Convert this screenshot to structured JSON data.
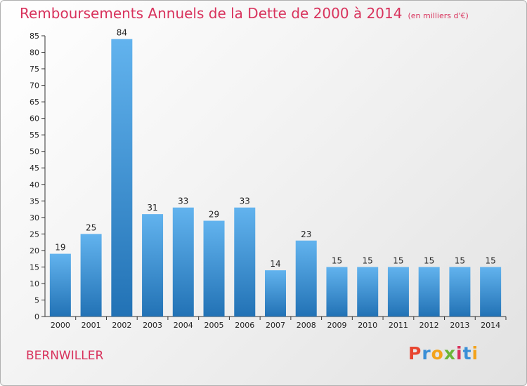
{
  "header": {
    "title": "Remboursements Annuels de la Dette de 2000 à 2014",
    "unit": "(en milliers d'€)"
  },
  "footer": {
    "commune": "BERNWILLER",
    "brand": "Proxiti",
    "brand_colors": [
      "#e8452f",
      "#3a8fd6",
      "#f3a31b",
      "#6bb536",
      "#d8325c",
      "#3a8fd6",
      "#f3a31b"
    ]
  },
  "colors": {
    "title": "#d8325c",
    "bar_top": "#62b3ee",
    "bar_bottom": "#2272b5"
  },
  "chart_data": {
    "type": "bar",
    "title": "Remboursements Annuels de la Dette de 2000 à 2014",
    "subtitle": "(en milliers d'€)",
    "categories": [
      "2000",
      "2001",
      "2002",
      "2003",
      "2004",
      "2005",
      "2006",
      "2007",
      "2008",
      "2009",
      "2010",
      "2011",
      "2012",
      "2013",
      "2014"
    ],
    "values": [
      19,
      25,
      84,
      31,
      33,
      29,
      33,
      14,
      23,
      15,
      15,
      15,
      15,
      15,
      15
    ],
    "ylim": [
      0,
      85
    ],
    "yticks": [
      0,
      5,
      10,
      15,
      20,
      25,
      30,
      35,
      40,
      45,
      50,
      55,
      60,
      65,
      70,
      75,
      80,
      85
    ],
    "grid": false,
    "legend": "none"
  }
}
